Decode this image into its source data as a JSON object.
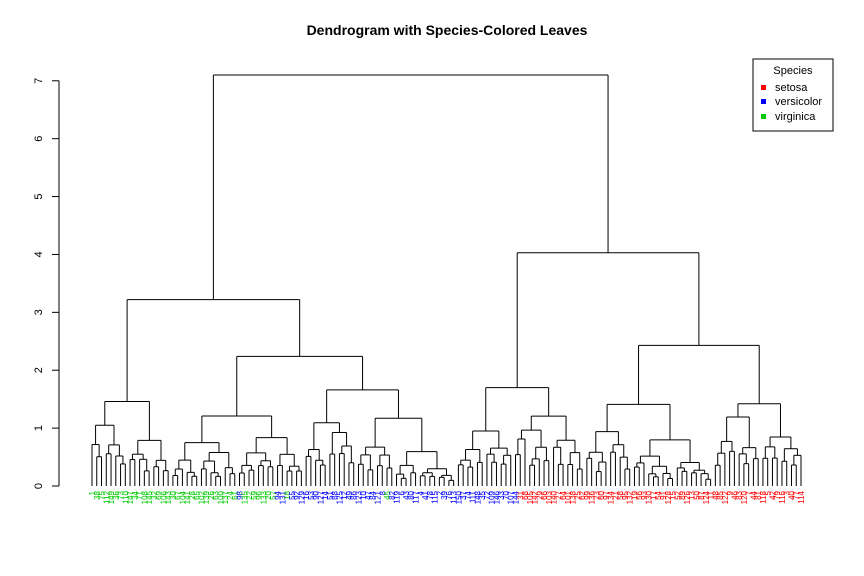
{
  "chart_data": {
    "type": "dendrogram",
    "title": "Dendrogram with Species-Colored Leaves",
    "xlabel": "",
    "ylabel": "",
    "ylim": [
      0,
      7.1
    ],
    "yticks": [
      0,
      1,
      2,
      3,
      4,
      5,
      6,
      7
    ],
    "grid": false,
    "legend": {
      "title": "Species",
      "position": "top-right",
      "entries": [
        {
          "label": "setosa",
          "color": "#ff0000"
        },
        {
          "label": "versicolor",
          "color": "#0000ff"
        },
        {
          "label": "virginica",
          "color": "#00cc00"
        }
      ]
    },
    "leaf_count": 150,
    "leaf_species_runs": [
      {
        "species": "virginica",
        "count": 31
      },
      {
        "species": "versicolor",
        "count": 1
      },
      {
        "species": "virginica",
        "count": 7
      },
      {
        "species": "versicolor",
        "count": 2
      },
      {
        "species": "virginica",
        "count": 1
      },
      {
        "species": "versicolor",
        "count": 20
      },
      {
        "species": "virginica",
        "count": 1
      },
      {
        "species": "versicolor",
        "count": 27
      },
      {
        "species": "setosa",
        "count": 60
      }
    ],
    "merges": [
      {
        "height": 7.1,
        "left": "cluster-A",
        "right": "cluster-B"
      },
      {
        "height": 3.22,
        "cluster": "cluster-A"
      },
      {
        "height": 4.03,
        "cluster": "cluster-B"
      },
      {
        "height": 2.24,
        "cluster": "cluster-A right"
      },
      {
        "height": 2.43,
        "cluster": "setosa group"
      },
      {
        "height": 1.7,
        "cluster": "versicolor group"
      },
      {
        "height": 1.66,
        "cluster": "mixed group"
      },
      {
        "height": 1.46,
        "cluster": "virginica left"
      }
    ]
  }
}
